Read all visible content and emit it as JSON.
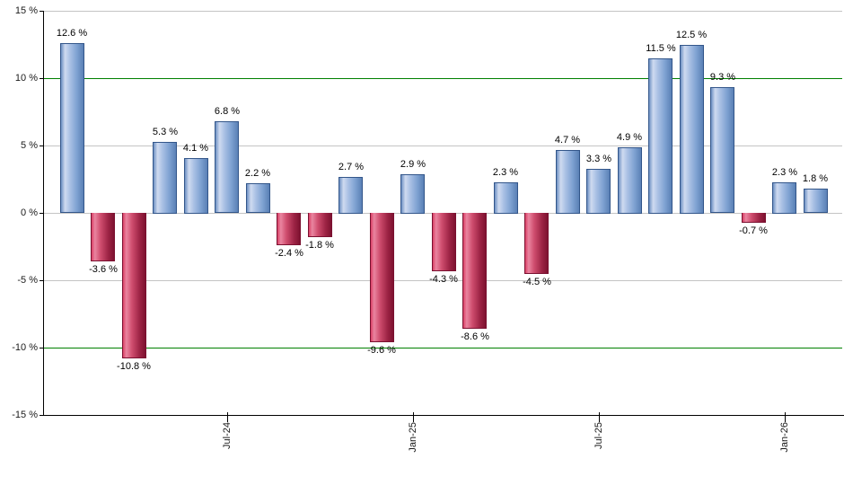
{
  "chart_data": {
    "type": "bar",
    "title": "",
    "xlabel": "",
    "ylabel": "",
    "ylim": [
      -15,
      15
    ],
    "grid": "on",
    "legend": "none",
    "values": [
      12.6,
      -3.6,
      -10.8,
      5.3,
      4.1,
      6.8,
      2.2,
      -2.4,
      -1.8,
      2.7,
      -9.6,
      2.9,
      -4.3,
      -8.6,
      2.3,
      -4.5,
      4.7,
      3.3,
      4.9,
      11.5,
      12.5,
      9.3,
      -0.7,
      2.3,
      1.8
    ],
    "bar_labels": [
      "12.6 %",
      "-3.6 %",
      "-10.8 %",
      "5.3 %",
      "4.1 %",
      "6.8 %",
      "2.2 %",
      "-2.4 %",
      "-1.8 %",
      "2.7 %",
      "-9.6 %",
      "2.9 %",
      "-4.3 %",
      "-8.6 %",
      "2.3 %",
      "-4.5 %",
      "4.7 %",
      "3.3 %",
      "4.9 %",
      "11.5 %",
      "12.5 %",
      "9.3 %",
      "-0.7 %",
      "2.3 %",
      "1.8 %"
    ],
    "x_ticks": [
      {
        "bar_index": 5,
        "label": "Jul-24"
      },
      {
        "bar_index": 11,
        "label": "Jan-25"
      },
      {
        "bar_index": 17,
        "label": "Jul-25"
      },
      {
        "bar_index": 23,
        "label": "Jan-26"
      }
    ],
    "y_ticks": [
      {
        "value": 15,
        "label": "15 %"
      },
      {
        "value": 10,
        "label": "10 %"
      },
      {
        "value": 5,
        "label": "5 %"
      },
      {
        "value": 0,
        "label": "0 %"
      },
      {
        "value": -5,
        "label": "-5 %"
      },
      {
        "value": -10,
        "label": "-10 %"
      },
      {
        "value": -15,
        "label": "-15 %"
      }
    ],
    "gridlines": [
      {
        "value": 15,
        "color": "gray"
      },
      {
        "value": 10,
        "color": "green"
      },
      {
        "value": 5,
        "color": "gray"
      },
      {
        "value": 0,
        "color": "gray"
      },
      {
        "value": -5,
        "color": "gray"
      },
      {
        "value": -10,
        "color": "green"
      }
    ],
    "colors": {
      "positive_bar": "#6d90c3",
      "negative_bar": "#c0274c",
      "green_line": "#008000",
      "gray_line": "#c4c4c4",
      "axis": "#000000",
      "label_text": "#000000",
      "background": "#ffffff"
    }
  }
}
